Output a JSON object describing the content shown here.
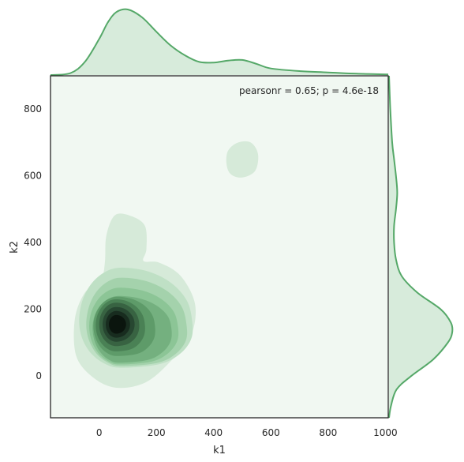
{
  "chart_data": {
    "type": "kde-joint",
    "xlabel": "k1",
    "ylabel": "k2",
    "annotation": "pearsonr = 0.65; p = 4.6e-18",
    "xlim": [
      -170,
      1010
    ],
    "ylim": [
      -125,
      900
    ],
    "x_ticks": [
      0,
      200,
      400,
      600,
      800,
      1000
    ],
    "y_ticks": [
      0,
      200,
      400,
      600,
      800
    ],
    "grid": false,
    "joint_density_peak": {
      "k1": 60,
      "k2": 155
    },
    "secondary_density_peak": {
      "k1": 505,
      "k2": 655
    },
    "marginal_x": {
      "x": [
        -170,
        -100,
        -50,
        0,
        30,
        60,
        100,
        150,
        200,
        250,
        300,
        350,
        400,
        450,
        500,
        550,
        600,
        700,
        800,
        900,
        1010
      ],
      "density": [
        0.0,
        0.03,
        0.2,
        0.55,
        0.8,
        0.96,
        1.0,
        0.88,
        0.66,
        0.45,
        0.3,
        0.2,
        0.19,
        0.22,
        0.23,
        0.17,
        0.1,
        0.06,
        0.04,
        0.02,
        0.01
      ]
    },
    "marginal_y": {
      "y": [
        -125,
        -90,
        -40,
        0,
        50,
        100,
        130,
        160,
        200,
        250,
        300,
        350,
        400,
        450,
        500,
        550,
        600,
        650,
        700,
        800,
        900
      ],
      "density": [
        0.0,
        0.03,
        0.12,
        0.35,
        0.7,
        0.93,
        1.0,
        0.98,
        0.82,
        0.45,
        0.2,
        0.11,
        0.08,
        0.08,
        0.11,
        0.13,
        0.11,
        0.08,
        0.05,
        0.02,
        0.0
      ]
    },
    "colors": {
      "line": "#55a868",
      "fill": "#d7ebdb",
      "background": "#f1f8f2",
      "levels": [
        "#d6ead9",
        "#bfe0c5",
        "#a4d2ac",
        "#8cc596",
        "#74b07f",
        "#5e9b69",
        "#4a8155",
        "#386342",
        "#274731",
        "#182c1f",
        "#0b150e"
      ]
    }
  }
}
